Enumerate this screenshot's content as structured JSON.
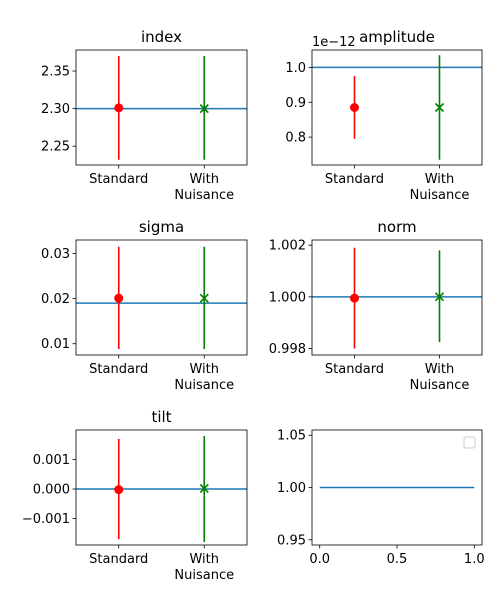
{
  "chart_data": [
    {
      "type": "errorbar",
      "title": "index",
      "categories": [
        "Standard",
        "With\nNuisance"
      ],
      "ylim": [
        2.225,
        2.378
      ],
      "yticks": [
        2.25,
        2.3,
        2.35
      ],
      "ytick_labels": [
        "2.25",
        "2.30",
        "2.35"
      ],
      "reference_line": 2.3,
      "series": [
        {
          "category": "Standard",
          "value": 2.301,
          "lower": 2.232,
          "upper": 2.37,
          "color": "#ff0000",
          "marker": "circle"
        },
        {
          "category": "With\nNuisance",
          "value": 2.3,
          "lower": 2.232,
          "upper": 2.37,
          "color": "#008000",
          "marker": "x"
        }
      ]
    },
    {
      "type": "errorbar",
      "title": "amplitude",
      "offset_text": "1e−12",
      "categories": [
        "Standard",
        "With\nNuisance"
      ],
      "ylim": [
        0.72,
        1.05
      ],
      "yticks": [
        0.8,
        0.9,
        1.0
      ],
      "ytick_labels": [
        "0.8",
        "0.9",
        "1.0"
      ],
      "reference_line": 1.0,
      "series": [
        {
          "category": "Standard",
          "value": 0.885,
          "lower": 0.795,
          "upper": 0.975,
          "color": "#ff0000",
          "marker": "circle"
        },
        {
          "category": "With\nNuisance",
          "value": 0.885,
          "lower": 0.735,
          "upper": 1.035,
          "color": "#008000",
          "marker": "x"
        }
      ]
    },
    {
      "type": "errorbar",
      "title": "sigma",
      "categories": [
        "Standard",
        "With\nNuisance"
      ],
      "ylim": [
        0.0075,
        0.033
      ],
      "yticks": [
        0.01,
        0.02,
        0.03
      ],
      "ytick_labels": [
        "0.01",
        "0.02",
        "0.03"
      ],
      "reference_line": 0.019,
      "series": [
        {
          "category": "Standard",
          "value": 0.0201,
          "lower": 0.0088,
          "upper": 0.0315,
          "color": "#ff0000",
          "marker": "circle"
        },
        {
          "category": "With\nNuisance",
          "value": 0.0201,
          "lower": 0.0088,
          "upper": 0.0315,
          "color": "#008000",
          "marker": "x"
        }
      ]
    },
    {
      "type": "errorbar",
      "title": "norm",
      "categories": [
        "Standard",
        "With\nNuisance"
      ],
      "ylim": [
        0.99775,
        1.0022
      ],
      "yticks": [
        0.998,
        1.0,
        1.002
      ],
      "ytick_labels": [
        "0.998",
        "1.000",
        "1.002"
      ],
      "reference_line": 1.0,
      "series": [
        {
          "category": "Standard",
          "value": 0.99995,
          "lower": 0.998,
          "upper": 1.0019,
          "color": "#ff0000",
          "marker": "circle"
        },
        {
          "category": "With\nNuisance",
          "value": 1.0,
          "lower": 0.99825,
          "upper": 1.0018,
          "color": "#008000",
          "marker": "x"
        }
      ]
    },
    {
      "type": "errorbar",
      "title": "tilt",
      "categories": [
        "Standard",
        "With\nNuisance"
      ],
      "ylim": [
        -0.0019,
        0.002
      ],
      "yticks": [
        -0.001,
        0.0,
        0.001
      ],
      "ytick_labels": [
        "−0.001",
        "0.000",
        "0.001"
      ],
      "reference_line": 0.0,
      "series": [
        {
          "category": "Standard",
          "value": -2e-05,
          "lower": -0.0017,
          "upper": 0.0017,
          "color": "#ff0000",
          "marker": "circle"
        },
        {
          "category": "With\nNuisance",
          "value": 2e-05,
          "lower": -0.0018,
          "upper": 0.0018,
          "color": "#008000",
          "marker": "x"
        }
      ]
    },
    {
      "type": "line",
      "title": "",
      "xlim": [
        -0.05,
        1.05
      ],
      "ylim": [
        0.945,
        1.055
      ],
      "xticks": [
        0.0,
        0.5,
        1.0
      ],
      "xtick_labels": [
        "0.0",
        "0.5",
        "1.0"
      ],
      "yticks": [
        0.95,
        1.0,
        1.05
      ],
      "ytick_labels": [
        "0.95",
        "1.00",
        "1.05"
      ],
      "series": [
        {
          "x": [
            0.0,
            1.0
          ],
          "y": [
            1.0,
            1.0
          ],
          "color": "#1f77b4"
        }
      ],
      "legend": "top-right, empty"
    }
  ]
}
